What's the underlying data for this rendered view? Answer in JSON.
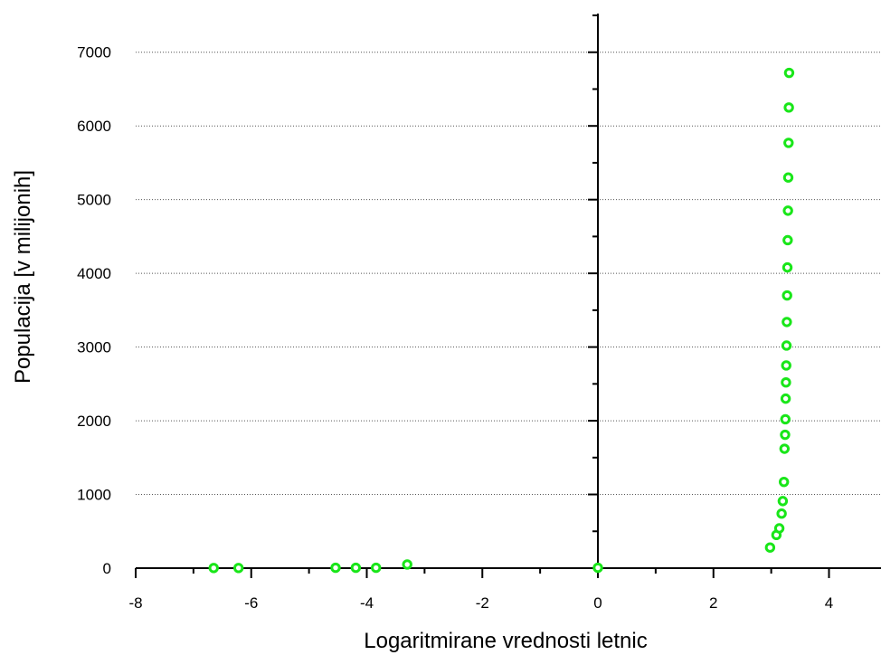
{
  "chart_data": {
    "type": "scatter",
    "xlabel": "Logaritmirane vrednosti letnic",
    "ylabel": "Populacija [v milijonih]",
    "xlim": [
      -8,
      4.9
    ],
    "ylim": [
      0,
      7500
    ],
    "x_ticks": [
      -8,
      -6,
      -4,
      -2,
      0,
      2,
      4
    ],
    "y_ticks": [
      0,
      1000,
      2000,
      3000,
      4000,
      5000,
      6000,
      7000
    ],
    "x_tick_labels": [
      "-8",
      "-6",
      "-4",
      "-2",
      "0",
      "2",
      "4"
    ],
    "y_tick_labels": [
      "0",
      "1000",
      "2000",
      "3000",
      "4000",
      "5000",
      "6000",
      "7000"
    ],
    "grid": "horizontal dotted",
    "marker_color": "#19e619",
    "points": [
      {
        "x": -6.65,
        "y": 2
      },
      {
        "x": -6.22,
        "y": 2
      },
      {
        "x": -4.54,
        "y": 5
      },
      {
        "x": -4.19,
        "y": 5
      },
      {
        "x": -3.84,
        "y": 5
      },
      {
        "x": -3.3,
        "y": 50
      },
      {
        "x": 0.0,
        "y": 5
      },
      {
        "x": 2.98,
        "y": 280
      },
      {
        "x": 3.09,
        "y": 450
      },
      {
        "x": 3.14,
        "y": 540
      },
      {
        "x": 3.18,
        "y": 740
      },
      {
        "x": 3.2,
        "y": 910
      },
      {
        "x": 3.22,
        "y": 1170
      },
      {
        "x": 3.23,
        "y": 1620
      },
      {
        "x": 3.24,
        "y": 1810
      },
      {
        "x": 3.245,
        "y": 2020
      },
      {
        "x": 3.25,
        "y": 2300
      },
      {
        "x": 3.255,
        "y": 2520
      },
      {
        "x": 3.26,
        "y": 2750
      },
      {
        "x": 3.265,
        "y": 3020
      },
      {
        "x": 3.27,
        "y": 3340
      },
      {
        "x": 3.275,
        "y": 3700
      },
      {
        "x": 3.28,
        "y": 4080
      },
      {
        "x": 3.285,
        "y": 4450
      },
      {
        "x": 3.29,
        "y": 4850
      },
      {
        "x": 3.295,
        "y": 5300
      },
      {
        "x": 3.3,
        "y": 5770
      },
      {
        "x": 3.305,
        "y": 6250
      },
      {
        "x": 3.31,
        "y": 6720
      }
    ]
  }
}
